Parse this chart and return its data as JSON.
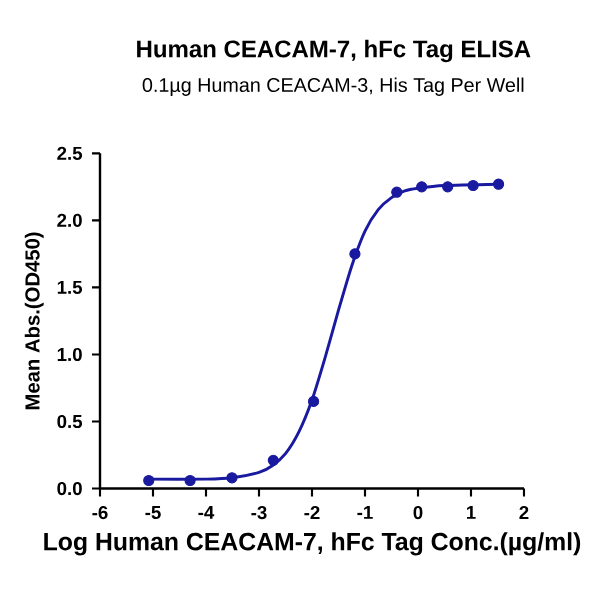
{
  "chart_data": {
    "type": "scatter",
    "title": "Human CEACAM-7, hFc Tag ELISA",
    "subtitle": "0.1µg Human CEACAM-3, His Tag Per Well",
    "xlabel": "Log Human CEACAM-7, hFc Tag Conc.(µg/ml)",
    "ylabel": "Mean Abs.(OD450)",
    "xlim": [
      -6,
      2
    ],
    "xticks": [
      -6,
      -5,
      -4,
      -3,
      -2,
      -1,
      0,
      1,
      2
    ],
    "ylim": [
      0,
      2.5
    ],
    "yticks": [
      {
        "value": 0,
        "label": "0.0"
      },
      {
        "value": 0.5,
        "label": "0.5"
      },
      {
        "value": 1,
        "label": "1.0"
      },
      {
        "value": 1.5,
        "label": "1.5"
      },
      {
        "value": 2,
        "label": "2.0"
      },
      {
        "value": 2.5,
        "label": "2.5"
      }
    ],
    "grid": false,
    "series": [
      {
        "marker": "circle",
        "color": "#1a1aa0",
        "x": [
          -5.08,
          -4.3,
          -3.51,
          -2.73,
          -1.97,
          -1.19,
          -0.4,
          0.07,
          0.56,
          1.04,
          1.52
        ],
        "values": [
          0.06,
          0.06,
          0.08,
          0.21,
          0.65,
          1.75,
          2.21,
          2.25,
          2.25,
          2.26,
          2.27
        ]
      },
      {
        "type": "line",
        "marker": "none",
        "line_style": "solid",
        "color": "#1a1aa0",
        "x": [
          -5.08,
          -4,
          -3.5,
          -3,
          -2.75,
          -2.5,
          -2.25,
          -2,
          -1.75,
          -1.5,
          -1.25,
          -1,
          -0.75,
          -0.5,
          -0.25,
          0,
          0.5,
          1.52
        ],
        "values": [
          0.07,
          0.07,
          0.08,
          0.12,
          0.17,
          0.26,
          0.42,
          0.66,
          0.98,
          1.33,
          1.66,
          1.92,
          2.08,
          2.17,
          2.22,
          2.24,
          2.26,
          2.27
        ]
      }
    ]
  }
}
